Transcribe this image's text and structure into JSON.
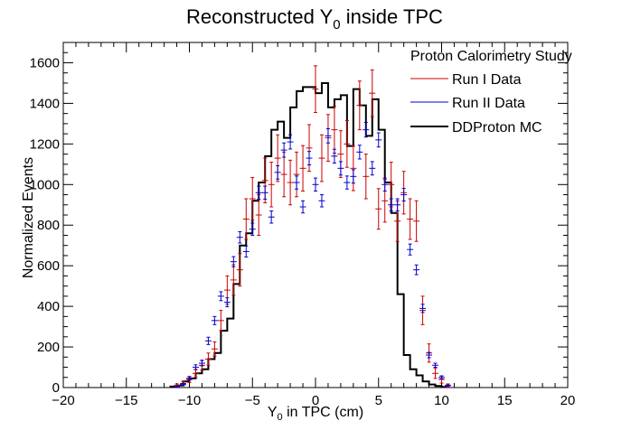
{
  "chart_data": {
    "type": "histogram",
    "title": "Reconstructed Y",
    "title_subscript": "0",
    "title_suffix": " inside TPC",
    "xlabel": "Y",
    "xlabel_subscript": "0",
    "xlabel_suffix": " in TPC (cm)",
    "ylabel": "Normalized Events",
    "xlim": [
      -20,
      20
    ],
    "ylim": [
      0,
      1700
    ],
    "xticks": [
      -20,
      -15,
      -10,
      -5,
      0,
      5,
      10,
      15,
      20
    ],
    "yticks": [
      0,
      200,
      400,
      600,
      800,
      1000,
      1200,
      1400,
      1600
    ],
    "grid": false,
    "legend": {
      "header": "Proton Calorimetry Study",
      "position": "top-right",
      "entries": [
        "Run I Data",
        "Run II Data",
        "DDProton MC"
      ]
    },
    "series": [
      {
        "name": "Run I Data",
        "style": "points-with-errors",
        "color": "#cc0000",
        "x": [
          -11,
          -10.5,
          -10,
          -9.5,
          -9,
          -8.5,
          -8,
          -7.5,
          -7,
          -6.5,
          -6,
          -5.5,
          -5,
          -4.5,
          -4,
          -3.5,
          -3,
          -2.5,
          -2,
          -1.5,
          -1,
          -0.5,
          0,
          0.5,
          1,
          1.5,
          2,
          2.5,
          3,
          3.5,
          4,
          4.5,
          5,
          5.5,
          6,
          6.5,
          7,
          7.5,
          8,
          8.5,
          9,
          9.5,
          10,
          10.5
        ],
        "y": [
          10,
          20,
          40,
          70,
          110,
          140,
          190,
          330,
          480,
          530,
          580,
          830,
          930,
          850,
          1020,
          1000,
          1130,
          1050,
          1010,
          1050,
          1080,
          1180,
          1470,
          1130,
          1230,
          1270,
          1150,
          1200,
          1080,
          1390,
          1040,
          1450,
          880,
          920,
          1000,
          820,
          960,
          830,
          820,
          380,
          170,
          70,
          40,
          10
        ],
        "yerr": [
          8,
          10,
          15,
          20,
          25,
          30,
          35,
          50,
          70,
          75,
          80,
          100,
          105,
          100,
          110,
          110,
          115,
          110,
          110,
          110,
          112,
          115,
          115,
          115,
          115,
          115,
          115,
          115,
          110,
          120,
          110,
          115,
          100,
          105,
          110,
          100,
          105,
          100,
          100,
          70,
          45,
          25,
          18,
          8
        ]
      },
      {
        "name": "Run II Data",
        "style": "points-with-errors",
        "color": "#0000cc",
        "x": [
          -11,
          -10.5,
          -10,
          -9.5,
          -9,
          -8.5,
          -8,
          -7.5,
          -7,
          -6.5,
          -6,
          -5.5,
          -5,
          -4.5,
          -4,
          -3.5,
          -3,
          -2.5,
          -2,
          -1.5,
          -1,
          -0.5,
          0,
          0.5,
          1,
          1.5,
          2,
          2.5,
          3,
          3.5,
          4,
          4.5,
          5,
          5.5,
          6,
          6.5,
          7,
          7.5,
          8,
          8.5,
          9,
          9.5,
          10,
          10.5
        ],
        "y": [
          5,
          15,
          45,
          100,
          120,
          230,
          330,
          450,
          420,
          620,
          740,
          670,
          780,
          960,
          960,
          840,
          1060,
          1170,
          1210,
          1010,
          890,
          1130,
          1000,
          920,
          1240,
          1140,
          1080,
          1010,
          1040,
          1160,
          1270,
          1080,
          1220,
          1000,
          900,
          900,
          950,
          680,
          580,
          390,
          160,
          110,
          50,
          10
        ],
        "yerr": [
          3,
          5,
          8,
          12,
          13,
          18,
          20,
          22,
          22,
          25,
          28,
          27,
          30,
          32,
          32,
          30,
          33,
          35,
          35,
          32,
          30,
          33,
          32,
          30,
          35,
          34,
          33,
          32,
          33,
          34,
          36,
          33,
          35,
          32,
          30,
          30,
          31,
          27,
          24,
          20,
          13,
          10,
          7,
          3
        ]
      },
      {
        "name": "DDProton MC",
        "style": "step",
        "color": "#000000",
        "edges": [
          -11.5,
          -11,
          -10.5,
          -10,
          -9.5,
          -9,
          -8.5,
          -8,
          -7.5,
          -7,
          -6.5,
          -6,
          -5.5,
          -5,
          -4.5,
          -4,
          -3.5,
          -3,
          -2.5,
          -2,
          -1.5,
          -1,
          -0.5,
          0,
          0.5,
          1,
          1.5,
          2,
          2.5,
          3,
          3.5,
          4,
          4.5,
          5,
          5.5,
          6,
          6.5,
          7,
          7.5,
          8,
          8.5,
          9,
          9.5,
          10,
          10.5
        ],
        "values": [
          5,
          10,
          30,
          45,
          70,
          90,
          140,
          170,
          280,
          340,
          510,
          700,
          760,
          920,
          1010,
          1140,
          1270,
          1310,
          1230,
          1380,
          1460,
          1480,
          1480,
          1450,
          1500,
          1380,
          1420,
          1440,
          1190,
          1470,
          1390,
          1240,
          1420,
          1270,
          1010,
          860,
          460,
          160,
          90,
          60,
          30,
          15,
          8,
          3
        ]
      }
    ]
  }
}
